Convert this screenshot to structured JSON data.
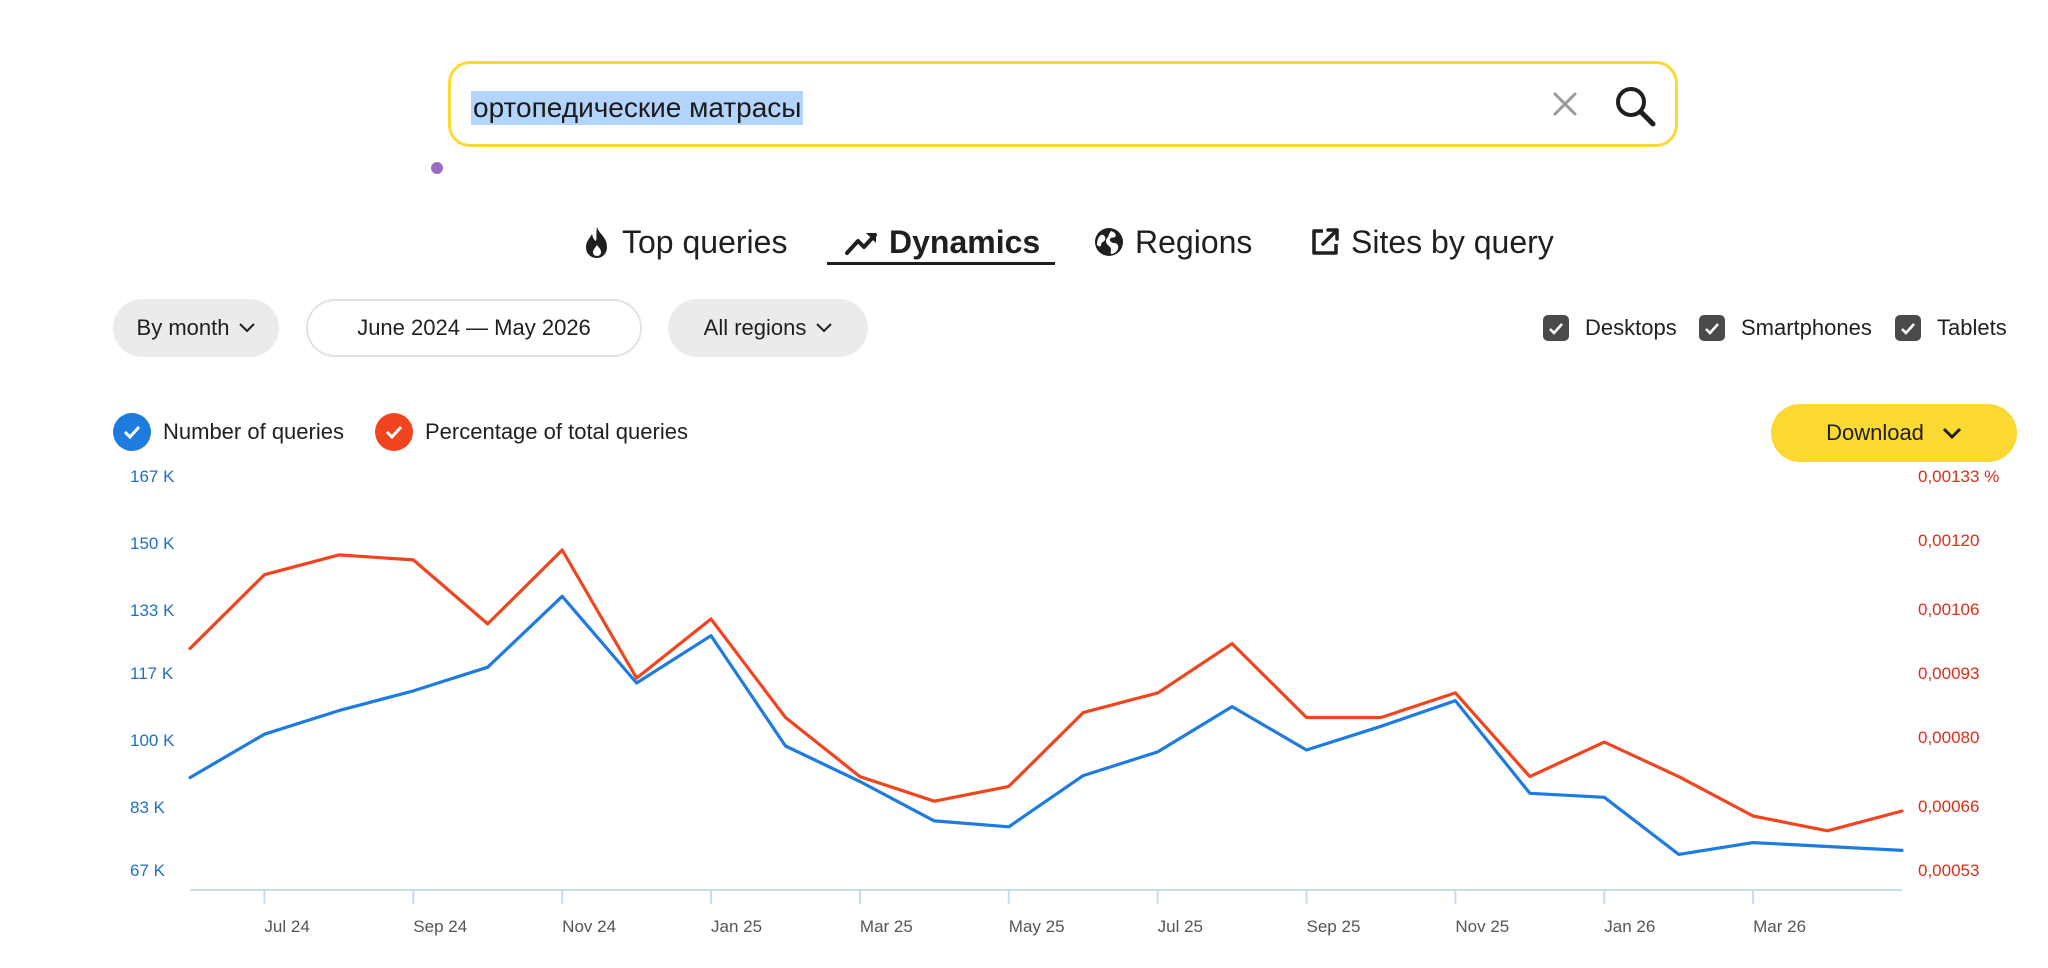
{
  "search": {
    "query": "ортопедические матрасы"
  },
  "tabs": [
    {
      "label": "Top queries"
    },
    {
      "label": "Dynamics"
    },
    {
      "label": "Regions"
    },
    {
      "label": "Sites by query"
    }
  ],
  "filters": {
    "period": "By month",
    "date_range": "June 2024 — May 2026",
    "region": "All regions"
  },
  "devices": [
    {
      "label": "Desktops",
      "checked": true
    },
    {
      "label": "Smartphones",
      "checked": true
    },
    {
      "label": "Tablets",
      "checked": true
    }
  ],
  "legend": [
    {
      "label": "Number of queries",
      "color": "#1e7be0"
    },
    {
      "label": "Percentage of total queries",
      "color": "#f0451f"
    }
  ],
  "download_label": "Download",
  "chart_data": {
    "type": "line",
    "x": [
      "2024-06",
      "2024-07",
      "2024-08",
      "2024-09",
      "2024-10",
      "2024-11",
      "2024-12",
      "2025-01",
      "2025-02",
      "2025-03",
      "2025-04",
      "2025-05",
      "2025-06",
      "2025-07",
      "2025-08",
      "2025-09",
      "2025-10",
      "2025-11",
      "2025-12",
      "2026-01",
      "2026-02",
      "2026-03",
      "2026-04",
      "2026-05"
    ],
    "x_tick_labels": [
      {
        "x": "2024-07",
        "label": "Jul 24"
      },
      {
        "x": "2024-09",
        "label": "Sep 24"
      },
      {
        "x": "2024-11",
        "label": "Nov 24"
      },
      {
        "x": "2025-01",
        "label": "Jan 25"
      },
      {
        "x": "2025-03",
        "label": "Mar 25"
      },
      {
        "x": "2025-05",
        "label": "May 25"
      },
      {
        "x": "2025-07",
        "label": "Jul 25"
      },
      {
        "x": "2025-09",
        "label": "Sep 25"
      },
      {
        "x": "2025-11",
        "label": "Nov 25"
      },
      {
        "x": "2026-01",
        "label": "Jan 26"
      },
      {
        "x": "2026-03",
        "label": "Mar 26"
      }
    ],
    "y_left": {
      "ylim": [
        67000,
        167000
      ],
      "ticks": [
        67000,
        83000,
        100000,
        117000,
        133000,
        150000,
        167000
      ],
      "tick_labels": [
        "67 K",
        "83 K",
        "100 K",
        "117 K",
        "133 K",
        "150 K",
        "167 K"
      ]
    },
    "y_right": {
      "ylim": [
        0.00053,
        0.00133
      ],
      "ticks": [
        0.00053,
        0.00066,
        0.0008,
        0.00093,
        0.00106,
        0.0012,
        0.00133
      ],
      "tick_labels": [
        "0,00053",
        "0,00066",
        "0,00080",
        "0,00093",
        "0,00106",
        "0,00120",
        "0,00133 %"
      ]
    },
    "series": [
      {
        "name": "Number of queries",
        "axis": "left",
        "color": "#1e7be0",
        "values": [
          93000,
          104000,
          110000,
          115000,
          121000,
          139000,
          117000,
          129000,
          101000,
          92000,
          82000,
          80500,
          93500,
          99500,
          111000,
          100000,
          106000,
          112500,
          89000,
          88000,
          73500,
          76500,
          75500,
          74500
        ]
      },
      {
        "name": "Percentage of total queries",
        "axis": "right",
        "color": "#f0451f",
        "values": [
          0.001,
          0.00115,
          0.00119,
          0.00118,
          0.00105,
          0.0012,
          0.00094,
          0.00106,
          0.00086,
          0.00074,
          0.00069,
          0.00072,
          0.00087,
          0.00091,
          0.00101,
          0.00086,
          0.00086,
          0.00091,
          0.00074,
          0.00081,
          0.00074,
          0.00066,
          0.00063,
          0.00067
        ]
      }
    ]
  }
}
